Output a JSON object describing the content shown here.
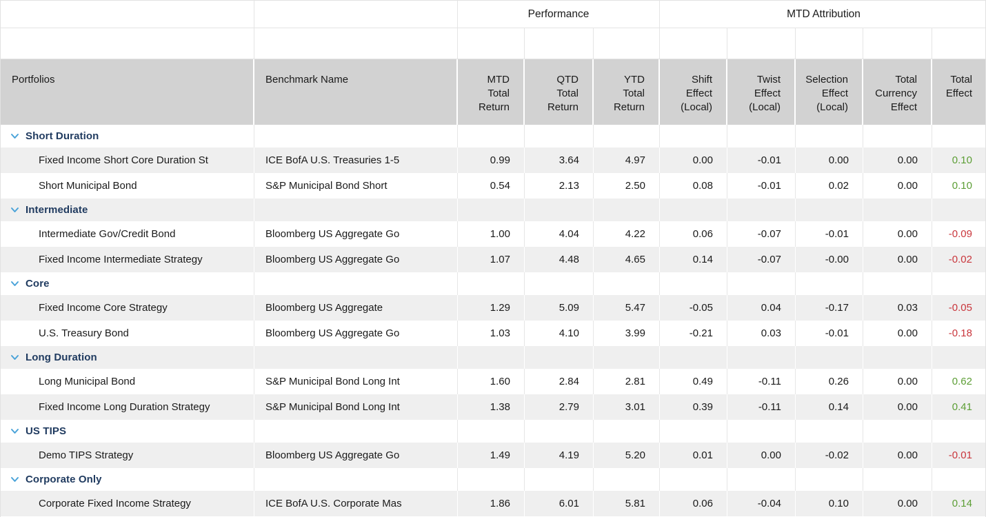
{
  "colors": {
    "positive_green": "#5c9e35",
    "negative_red": "#c9363c",
    "group_text_navy": "#1f3a5f",
    "chevron_blue": "#4aa3d9",
    "header_gray": "#d2d2d2",
    "zebra_gray": "#efefef"
  },
  "table": {
    "group_headers": {
      "performance": "Performance",
      "mtd_attribution": "MTD Attribution"
    },
    "columns": [
      "Portfolios",
      "Benchmark Name",
      "MTD\nTotal\nReturn",
      "QTD\nTotal\nReturn",
      "YTD\nTotal\nReturn",
      "Shift\nEffect\n(Local)",
      "Twist\nEffect\n(Local)",
      "Selection\nEffect\n(Local)",
      "Total\nCurrency\nEffect",
      "Total\nEffect"
    ],
    "sections": [
      {
        "label": "Short Duration",
        "rows": [
          {
            "portfolio": "Fixed Income Short Core Duration St",
            "benchmark": "ICE BofA U.S. Treasuries 1-5",
            "mtd": "0.99",
            "qtd": "3.64",
            "ytd": "4.97",
            "shift": "0.00",
            "twist": "-0.01",
            "selection": "0.00",
            "currency": "0.00",
            "total_effect": "0.10"
          },
          {
            "portfolio": "Short Municipal Bond",
            "benchmark": "S&P Municipal Bond Short",
            "mtd": "0.54",
            "qtd": "2.13",
            "ytd": "2.50",
            "shift": "0.08",
            "twist": "-0.01",
            "selection": "0.02",
            "currency": "0.00",
            "total_effect": "0.10"
          }
        ]
      },
      {
        "label": "Intermediate",
        "rows": [
          {
            "portfolio": "Intermediate Gov/Credit Bond",
            "benchmark": "Bloomberg US Aggregate Go",
            "mtd": "1.00",
            "qtd": "4.04",
            "ytd": "4.22",
            "shift": "0.06",
            "twist": "-0.07",
            "selection": "-0.01",
            "currency": "0.00",
            "total_effect": "-0.09"
          },
          {
            "portfolio": "Fixed Income Intermediate Strategy",
            "benchmark": "Bloomberg US Aggregate Go",
            "mtd": "1.07",
            "qtd": "4.48",
            "ytd": "4.65",
            "shift": "0.14",
            "twist": "-0.07",
            "selection": "-0.00",
            "currency": "0.00",
            "total_effect": "-0.02"
          }
        ]
      },
      {
        "label": "Core",
        "rows": [
          {
            "portfolio": "Fixed Income Core Strategy",
            "benchmark": "Bloomberg US Aggregate",
            "mtd": "1.29",
            "qtd": "5.09",
            "ytd": "5.47",
            "shift": "-0.05",
            "twist": "0.04",
            "selection": "-0.17",
            "currency": "0.03",
            "total_effect": "-0.05"
          },
          {
            "portfolio": "U.S. Treasury Bond",
            "benchmark": "Bloomberg US Aggregate Go",
            "mtd": "1.03",
            "qtd": "4.10",
            "ytd": "3.99",
            "shift": "-0.21",
            "twist": "0.03",
            "selection": "-0.01",
            "currency": "0.00",
            "total_effect": "-0.18"
          }
        ]
      },
      {
        "label": "Long Duration",
        "rows": [
          {
            "portfolio": "Long Municipal Bond",
            "benchmark": "S&P Municipal Bond Long Int",
            "mtd": "1.60",
            "qtd": "2.84",
            "ytd": "2.81",
            "shift": "0.49",
            "twist": "-0.11",
            "selection": "0.26",
            "currency": "0.00",
            "total_effect": "0.62"
          },
          {
            "portfolio": "Fixed Income Long Duration Strategy",
            "benchmark": "S&P Municipal Bond Long Int",
            "mtd": "1.38",
            "qtd": "2.79",
            "ytd": "3.01",
            "shift": "0.39",
            "twist": "-0.11",
            "selection": "0.14",
            "currency": "0.00",
            "total_effect": "0.41"
          }
        ]
      },
      {
        "label": "US TIPS",
        "rows": [
          {
            "portfolio": "Demo TIPS Strategy",
            "benchmark": "Bloomberg US Aggregate Go",
            "mtd": "1.49",
            "qtd": "4.19",
            "ytd": "5.20",
            "shift": "0.01",
            "twist": "0.00",
            "selection": "-0.02",
            "currency": "0.00",
            "total_effect": "-0.01"
          }
        ]
      },
      {
        "label": "Corporate Only",
        "rows": [
          {
            "portfolio": "Corporate Fixed Income Strategy",
            "benchmark": "ICE BofA U.S. Corporate Mas",
            "mtd": "1.86",
            "qtd": "6.01",
            "ytd": "5.81",
            "shift": "0.06",
            "twist": "-0.04",
            "selection": "0.10",
            "currency": "0.00",
            "total_effect": "0.14"
          }
        ]
      }
    ]
  }
}
